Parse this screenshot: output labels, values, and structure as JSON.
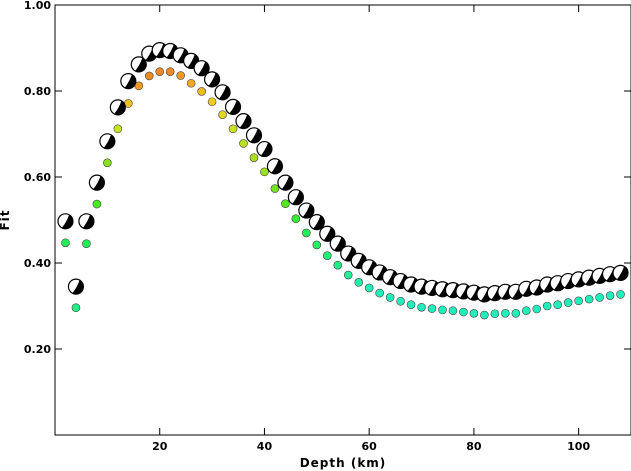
{
  "chart_data": {
    "type": "scatter",
    "xlabel": "Depth (km)",
    "ylabel": "Fit",
    "xlim": [
      0,
      110
    ],
    "ylim": [
      0.0,
      1.0
    ],
    "xticks": [
      "20",
      "40",
      "60",
      "80",
      "100"
    ],
    "xtick_values": [
      20,
      40,
      60,
      80,
      100
    ],
    "yticks": [
      "0.20",
      "0.40",
      "0.60",
      "0.80",
      "1.00"
    ],
    "ytick_values": [
      0.2,
      0.4,
      0.6,
      0.8,
      1.0
    ],
    "grid": false,
    "legend": "none",
    "series": [
      {
        "marker": "focal-mechanism",
        "x": [
          2,
          4,
          6,
          8,
          10,
          12,
          14,
          16,
          18,
          20,
          22,
          24,
          26,
          28,
          30,
          32,
          34,
          36,
          38,
          40,
          42,
          44,
          46,
          48,
          50,
          52,
          54,
          56,
          58,
          60,
          62,
          64,
          66,
          68,
          70,
          72,
          74,
          76,
          78,
          80,
          82,
          84,
          86,
          88,
          90,
          92,
          94,
          96,
          98,
          100,
          102,
          104,
          106,
          108
        ],
        "y": [
          0.497,
          0.345,
          0.497,
          0.587,
          0.683,
          0.762,
          0.823,
          0.862,
          0.887,
          0.895,
          0.893,
          0.883,
          0.87,
          0.853,
          0.827,
          0.797,
          0.763,
          0.73,
          0.697,
          0.665,
          0.625,
          0.587,
          0.553,
          0.522,
          0.495,
          0.468,
          0.445,
          0.422,
          0.405,
          0.39,
          0.378,
          0.367,
          0.358,
          0.35,
          0.345,
          0.342,
          0.339,
          0.337,
          0.334,
          0.331,
          0.327,
          0.33,
          0.333,
          0.333,
          0.34,
          0.343,
          0.35,
          0.353,
          0.358,
          0.362,
          0.366,
          0.37,
          0.374,
          0.377
        ]
      },
      {
        "marker": "dot",
        "x": [
          2,
          4,
          6,
          8,
          10,
          12,
          14,
          16,
          18,
          20,
          22,
          24,
          26,
          28,
          30,
          32,
          34,
          36,
          38,
          40,
          42,
          44,
          46,
          48,
          50,
          52,
          54,
          56,
          58,
          60,
          62,
          64,
          66,
          68,
          70,
          72,
          74,
          76,
          78,
          80,
          82,
          84,
          86,
          88,
          90,
          92,
          94,
          96,
          98,
          100,
          102,
          104,
          106,
          108
        ],
        "y": [
          0.447,
          0.296,
          0.445,
          0.537,
          0.633,
          0.712,
          0.771,
          0.812,
          0.835,
          0.845,
          0.845,
          0.836,
          0.818,
          0.799,
          0.775,
          0.745,
          0.712,
          0.678,
          0.645,
          0.612,
          0.573,
          0.538,
          0.503,
          0.47,
          0.442,
          0.417,
          0.395,
          0.372,
          0.355,
          0.342,
          0.33,
          0.32,
          0.311,
          0.303,
          0.297,
          0.294,
          0.291,
          0.289,
          0.286,
          0.283,
          0.279,
          0.282,
          0.283,
          0.283,
          0.289,
          0.293,
          0.3,
          0.303,
          0.308,
          0.312,
          0.316,
          0.32,
          0.324,
          0.327
        ],
        "colors": [
          "#22ee55",
          "#22ee88",
          "#22ee55",
          "#44ee22",
          "#88e022",
          "#cce022",
          "#eec022",
          "#ee9922",
          "#ee8822",
          "#ee8822",
          "#ee8822",
          "#ee9922",
          "#eeaa22",
          "#eebb22",
          "#eecc22",
          "#ddd822",
          "#cce022",
          "#bbe022",
          "#aae022",
          "#99e022",
          "#77e022",
          "#55e622",
          "#33ee33",
          "#22ee55",
          "#22ee66",
          "#22ee77",
          "#22ee88",
          "#22ee99",
          "#22eeaa",
          "#22eebb",
          "#22eebb",
          "#22eebb",
          "#22eebb",
          "#22eebb",
          "#22eebb",
          "#22eebb",
          "#22eebb",
          "#22eebb",
          "#22eebb",
          "#22eebb",
          "#22eebb",
          "#22eebb",
          "#22eebb",
          "#22eebb",
          "#22eebb",
          "#22eebb",
          "#22eebb",
          "#22eebb",
          "#22eebb",
          "#22eebb",
          "#22eebb",
          "#22eebb",
          "#22eebb",
          "#22eebb"
        ]
      }
    ]
  }
}
